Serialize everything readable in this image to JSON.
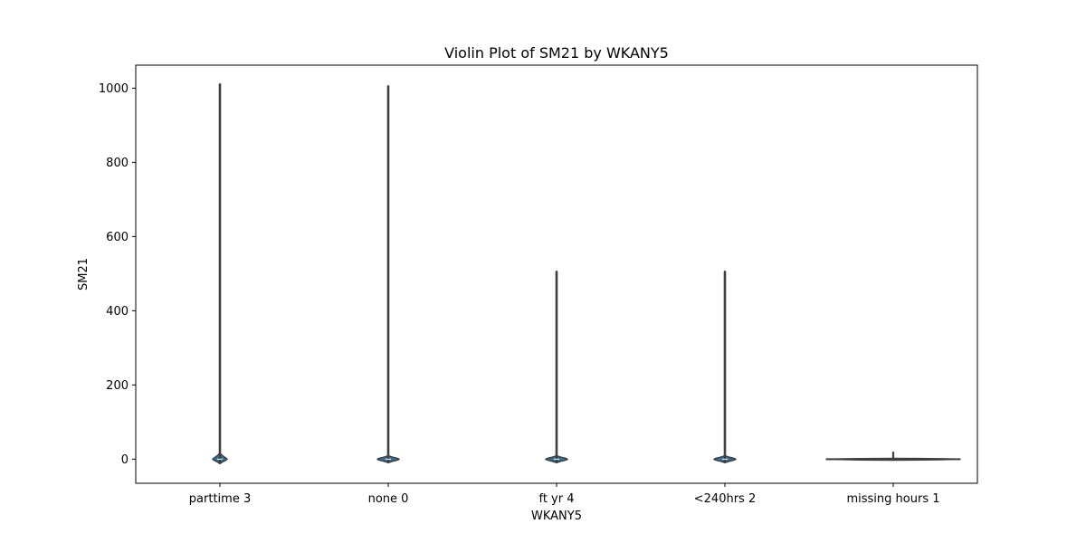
{
  "chart_data": {
    "type": "violin",
    "title": "Violin Plot of SM21 by WKANY5",
    "xlabel": "WKANY5",
    "ylabel": "SM21",
    "ylim": [
      -65,
      1062
    ],
    "yticks": [
      0,
      200,
      400,
      600,
      800,
      1000
    ],
    "grid": false,
    "categories": [
      "parttime 3",
      "none 0",
      "ft yr 4",
      "<240hrs 2",
      "missing hours 1"
    ],
    "violins": [
      {
        "category": "parttime 3",
        "min": -10,
        "max": 1010,
        "median": 0
      },
      {
        "category": "none 0",
        "min": -5,
        "max": 1005,
        "median": 0
      },
      {
        "category": "ft yr 4",
        "min": -7,
        "max": 505,
        "median": 0
      },
      {
        "category": "<240hrs 2",
        "min": -7,
        "max": 505,
        "median": 0
      },
      {
        "category": "missing hours 1",
        "min": -2,
        "max": 20,
        "median": 0
      }
    ],
    "colors": {
      "violin_fill": "#3274a1",
      "violin_edge": "#3f3f3f",
      "whisker": "#3f3f3f",
      "axes": "#000000"
    }
  }
}
